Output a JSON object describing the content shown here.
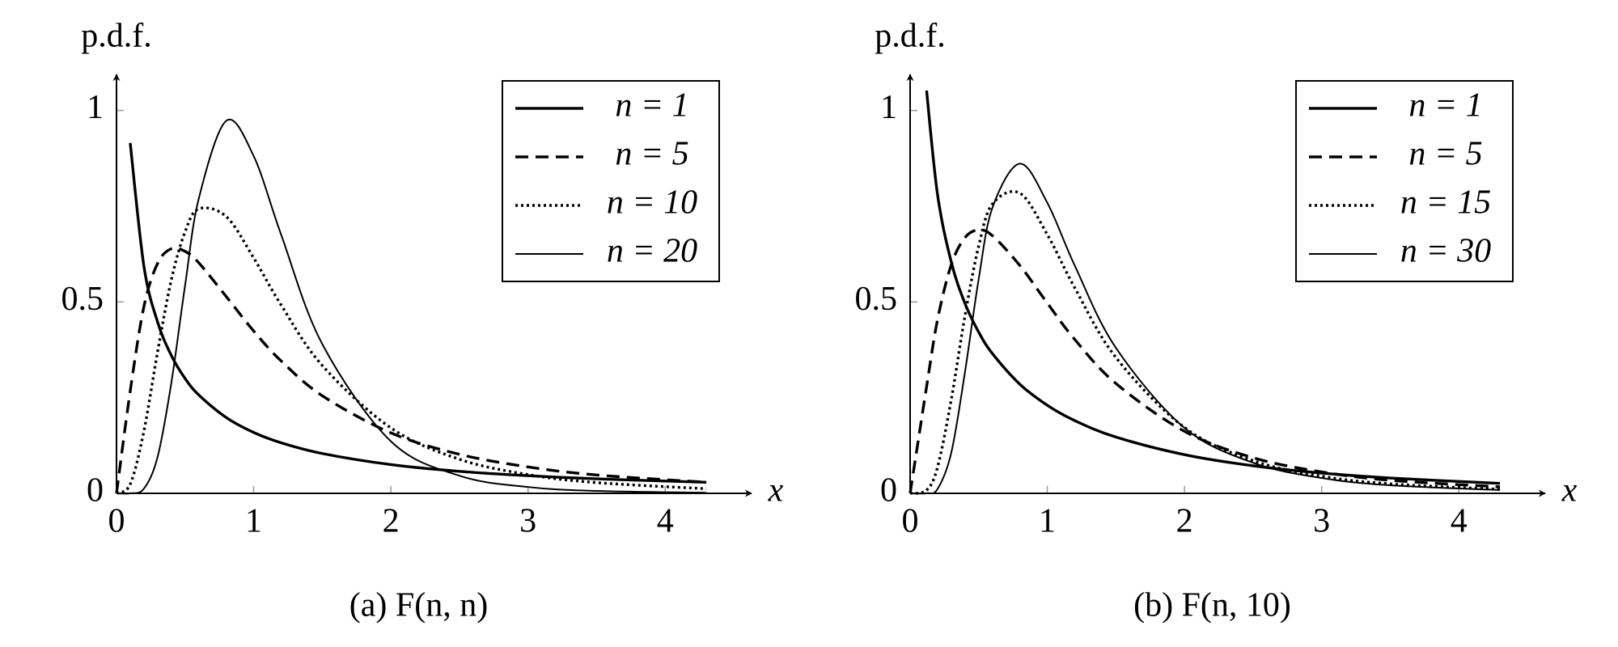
{
  "chart_data": [
    {
      "type": "line",
      "caption": "(a) F(n, n)",
      "ylabel": "p.d.f.",
      "xlabel": "x",
      "x": [
        0,
        0.1,
        0.2,
        0.3,
        0.4,
        0.5,
        0.6,
        0.8,
        1.0,
        1.2,
        1.5,
        2.0,
        2.5,
        3.0,
        3.5,
        4.3
      ],
      "xlim": [
        0,
        4.5
      ],
      "ylim": [
        0,
        1.09
      ],
      "xticks": [
        0,
        1,
        2,
        3,
        4
      ],
      "yticks": [
        0,
        0.5,
        1
      ],
      "legend": "upper right",
      "series": [
        {
          "name": "n = 1",
          "color": "#000000",
          "dash": "solid",
          "width": 3.4,
          "values": [
            null,
            0.915,
            0.593,
            0.447,
            0.36,
            0.3,
            0.257,
            0.198,
            0.159,
            0.132,
            0.104,
            0.075,
            0.0575,
            0.046,
            0.0378,
            0.029
          ]
        },
        {
          "name": "n = 5",
          "color": "#000000",
          "dash": "dashed",
          "width": 3.4,
          "values": [
            0,
            0.267,
            0.488,
            0.601,
            0.639,
            0.632,
            0.602,
            0.514,
            0.424,
            0.346,
            0.255,
            0.158,
            0.102,
            0.069,
            0.048,
            0.029
          ]
        },
        {
          "name": "n = 10",
          "color": "#000000",
          "dash": "dotted",
          "width": 3.4,
          "values": [
            0,
            0.024,
            0.163,
            0.37,
            0.558,
            0.683,
            0.743,
            0.723,
            0.615,
            0.492,
            0.334,
            0.171,
            0.089,
            0.049,
            0.028,
            0.012
          ]
        },
        {
          "name": "n = 20",
          "color": "#000000",
          "dash": "solid",
          "width": 2,
          "values": [
            0,
            0.0001,
            0.0123,
            0.0957,
            0.289,
            0.543,
            0.77,
            0.973,
            0.881,
            0.676,
            0.39,
            0.136,
            0.046,
            0.0165,
            0.0063,
            0.0015
          ]
        }
      ]
    },
    {
      "type": "line",
      "caption": "(b) F(n, 10)",
      "ylabel": "p.d.f.",
      "xlabel": "x",
      "x": [
        0,
        0.12,
        0.2,
        0.3,
        0.4,
        0.5,
        0.6,
        0.8,
        1.0,
        1.2,
        1.5,
        2.0,
        2.5,
        3.0,
        3.5,
        4.3
      ],
      "xlim": [
        0,
        4.5
      ],
      "ylim": [
        0,
        1.09
      ],
      "xticks": [
        0,
        1,
        2,
        3,
        4
      ],
      "yticks": [
        0,
        0.5,
        1
      ],
      "legend": "upper right",
      "series": [
        {
          "name": "n = 1",
          "color": "#000000",
          "dash": "solid",
          "width": 3.4,
          "values": [
            null,
            1.052,
            0.78,
            0.604,
            0.496,
            0.421,
            0.365,
            0.285,
            0.23,
            0.19,
            0.147,
            0.101,
            0.072,
            0.053,
            0.04,
            0.026
          ]
        },
        {
          "name": "n = 5",
          "color": "#000000",
          "dash": "dashed",
          "width": 3.4,
          "values": [
            0,
            0.2785,
            0.454,
            0.597,
            0.668,
            0.688,
            0.673,
            0.595,
            0.497,
            0.402,
            0.287,
            0.162,
            0.093,
            0.056,
            0.034,
            0.0169
          ]
        },
        {
          "name": "n = 15",
          "color": "#000000",
          "dash": "dotted",
          "width": 3.4,
          "values": [
            0,
            0.0083,
            0.0687,
            0.245,
            0.464,
            0.646,
            0.756,
            0.784,
            0.676,
            0.537,
            0.355,
            0.172,
            0.0856,
            0.0448,
            0.0247,
            0.0105
          ]
        },
        {
          "name": "n = 30",
          "color": "#000000",
          "dash": "solid",
          "width": 2,
          "values": [
            0,
            0.0002,
            0.0113,
            0.106,
            0.317,
            0.56,
            0.746,
            0.861,
            0.759,
            0.595,
            0.38,
            0.171,
            0.08,
            0.04,
            0.0211,
            0.0085
          ]
        }
      ]
    }
  ]
}
